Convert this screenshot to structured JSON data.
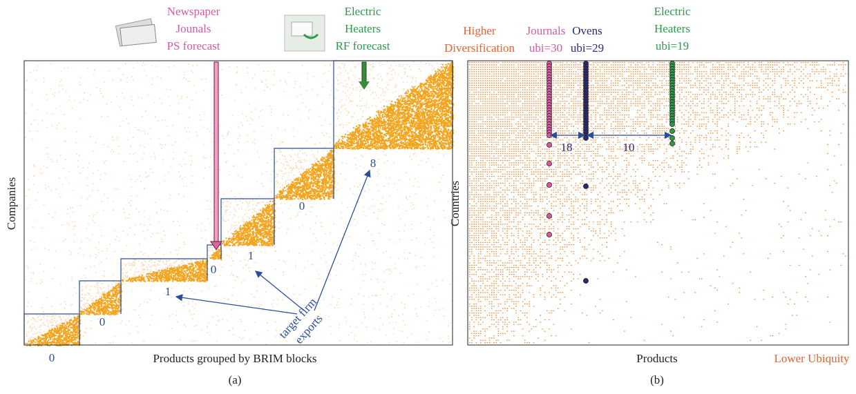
{
  "panel_a": {
    "legend": [
      {
        "lines": [
          "Newspaper",
          "Jounals",
          "PS forecast"
        ]
      },
      {
        "lines": [
          "Electric",
          "Heaters",
          "RF forecast"
        ]
      }
    ],
    "y_label": "Companies",
    "x_label": "Products grouped by BRIM blocks",
    "caption": "(a)",
    "block_labels": [
      "0",
      "0",
      "1",
      "0",
      "1",
      "0",
      "8"
    ],
    "annotation": [
      "target firm",
      "exports"
    ]
  },
  "panel_b": {
    "header": [
      {
        "lines": [
          "Higher",
          "Diversification"
        ]
      },
      {
        "lines": [
          "Journals",
          "ubi=30"
        ]
      },
      {
        "lines": [
          "Ovens",
          "ubi=29"
        ]
      },
      {
        "lines": [
          "Electric",
          "Heaters",
          "ubi=19"
        ]
      }
    ],
    "distances": [
      "18",
      "10"
    ],
    "y_label": "Countries",
    "x_label": "Products",
    "corner_label": "Lower Ubiquity",
    "caption": "(b)"
  }
}
